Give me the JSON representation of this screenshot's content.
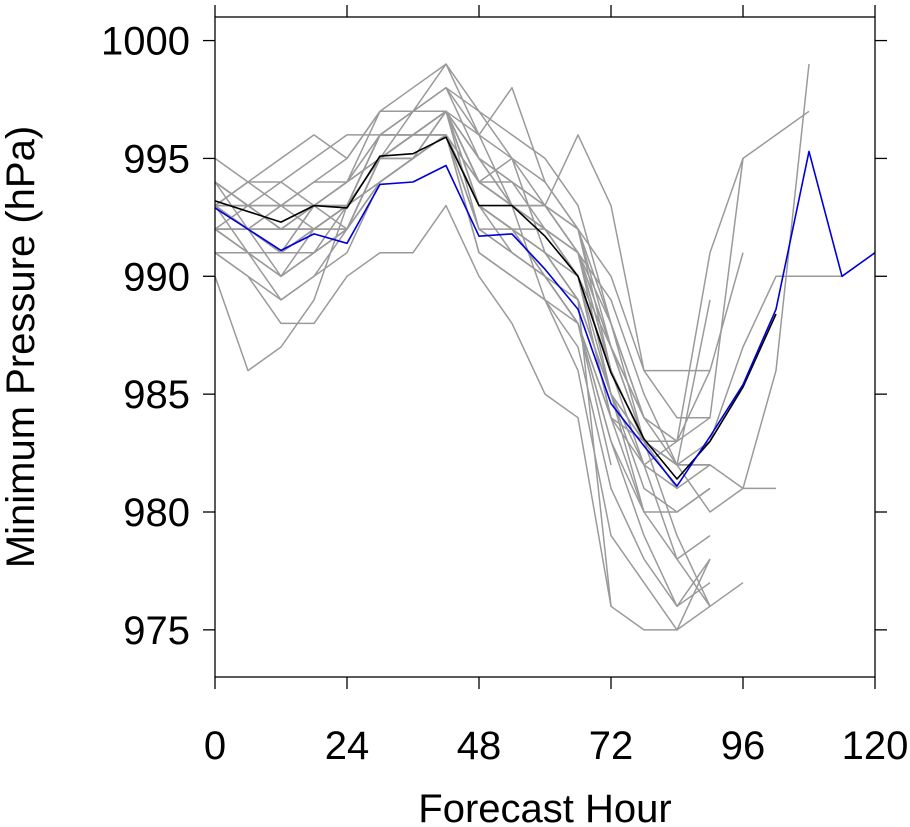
{
  "chart_data": {
    "type": "line",
    "xlabel": "Forecast Hour",
    "ylabel": "Minimum Pressure (hPa)",
    "xlim": [
      0,
      120
    ],
    "ylim": [
      973,
      1001
    ],
    "x_ticks": [
      0,
      24,
      48,
      72,
      96,
      120
    ],
    "x_tick_labels": [
      "0",
      "24",
      "48",
      "72",
      "96",
      "120"
    ],
    "y_ticks": [
      975,
      980,
      985,
      990,
      995,
      1000
    ],
    "y_tick_labels": [
      "975",
      "980",
      "985",
      "990",
      "995",
      "1000"
    ],
    "grid": false,
    "colors": {
      "ensemble": "#9a9a9a",
      "mean": "#000000",
      "highlight": "#0000dd",
      "frame": "#000000"
    },
    "series": [
      {
        "role": "ensemble",
        "x": [
          0,
          6,
          12,
          18,
          24,
          30,
          36,
          42,
          48,
          54,
          60,
          66,
          72,
          78,
          84,
          90
        ],
        "y": [
          990,
          986,
          987,
          989,
          993,
          996,
          997,
          999,
          996,
          993,
          989,
          986,
          979,
          977,
          975,
          978
        ]
      },
      {
        "role": "ensemble",
        "x": [
          0,
          6,
          12,
          18,
          24,
          30,
          36,
          42,
          48,
          54,
          60,
          66,
          72,
          78,
          84,
          90
        ],
        "y": [
          991,
          990,
          988,
          988,
          990,
          991,
          991,
          993,
          990,
          988,
          985,
          984,
          976,
          975,
          975,
          976
        ]
      },
      {
        "role": "ensemble",
        "x": [
          0,
          6,
          12,
          18,
          24,
          30,
          36,
          42,
          48,
          54,
          60,
          66,
          72,
          78,
          84,
          90
        ],
        "y": [
          992,
          991,
          989,
          990,
          992,
          995,
          995,
          997,
          993,
          992,
          990,
          988,
          983,
          979,
          976,
          977
        ]
      },
      {
        "role": "ensemble",
        "x": [
          0,
          6,
          12,
          18,
          24,
          30,
          36,
          42,
          48,
          54,
          60,
          66,
          72,
          78,
          84,
          90
        ],
        "y": [
          993,
          992,
          990,
          991,
          993,
          996,
          996,
          997,
          995,
          993,
          992,
          990,
          985,
          982,
          978,
          976
        ]
      },
      {
        "role": "ensemble",
        "x": [
          0,
          6,
          12,
          18,
          24,
          30,
          36,
          42,
          48,
          54,
          60,
          66,
          72,
          78,
          84,
          90,
          96
        ],
        "y": [
          994,
          993,
          992,
          993,
          994,
          997,
          997,
          998,
          995,
          994,
          992,
          991,
          986,
          983,
          979,
          976,
          977
        ]
      },
      {
        "role": "ensemble",
        "x": [
          0,
          6,
          12,
          18,
          24,
          30,
          36,
          42,
          48,
          54,
          60,
          66,
          72
        ],
        "y": [
          995,
          994,
          993,
          994,
          995,
          997,
          998,
          999,
          997,
          995,
          991,
          989,
          976
        ]
      },
      {
        "role": "ensemble",
        "x": [
          0,
          6,
          12,
          18,
          24,
          30,
          36,
          42,
          48,
          54,
          60,
          66,
          72,
          78,
          84,
          90
        ],
        "y": [
          993,
          994,
          995,
          996,
          995,
          997,
          997,
          998,
          996,
          998,
          994,
          992,
          987,
          983,
          982,
          982
        ]
      },
      {
        "role": "ensemble",
        "x": [
          0,
          6,
          12,
          18,
          24,
          30,
          36,
          42,
          48,
          54,
          60,
          66,
          72,
          78,
          84,
          90,
          96,
          102
        ],
        "y": [
          992,
          993,
          994,
          995,
          996,
          996,
          997,
          998,
          997,
          996,
          995,
          993,
          988,
          984,
          982,
          982,
          981,
          981
        ]
      },
      {
        "role": "ensemble",
        "x": [
          0,
          6,
          12,
          18,
          24,
          30,
          36,
          42,
          48,
          54,
          60,
          66,
          72,
          78,
          84,
          90
        ],
        "y": [
          994,
          992,
          991,
          993,
          994,
          995,
          996,
          996,
          994,
          993,
          993,
          996,
          993,
          986,
          984,
          984
        ]
      },
      {
        "role": "ensemble",
        "x": [
          0,
          6,
          12,
          18,
          24,
          30,
          36,
          42,
          48,
          54,
          60,
          66,
          72,
          78,
          84,
          90,
          96,
          102,
          108,
          114
        ],
        "y": [
          992,
          991,
          991,
          992,
          992,
          995,
          996,
          996,
          993,
          992,
          992,
          991,
          989,
          985,
          982,
          983,
          987,
          990,
          990,
          990
        ]
      },
      {
        "role": "ensemble",
        "x": [
          0,
          6,
          12,
          18,
          24,
          30,
          36,
          42,
          48,
          54,
          60,
          66,
          72,
          78,
          84,
          90,
          96
        ],
        "y": [
          993,
          993,
          992,
          992,
          993,
          995,
          995,
          997,
          994,
          993,
          993,
          992,
          988,
          984,
          983,
          991,
          995
        ]
      },
      {
        "role": "ensemble",
        "x": [
          0,
          6,
          12,
          18,
          24,
          30,
          36,
          42,
          48,
          54,
          60,
          66,
          72,
          78,
          84,
          90,
          96
        ],
        "y": [
          991,
          991,
          991,
          992,
          992,
          994,
          995,
          996,
          993,
          992,
          991,
          990,
          984,
          982,
          983,
          986,
          991
        ]
      },
      {
        "role": "ensemble",
        "x": [
          0,
          6,
          12,
          18,
          24,
          30,
          36,
          42,
          48,
          54,
          60,
          66,
          72,
          78,
          84,
          90
        ],
        "y": [
          993,
          992,
          993,
          994,
          994,
          996,
          996,
          997,
          996,
          995,
          994,
          992,
          990,
          986,
          986,
          986
        ]
      },
      {
        "role": "ensemble",
        "x": [
          0,
          6,
          12,
          18,
          24,
          30,
          36,
          42,
          48,
          54,
          60,
          66,
          72,
          78,
          84,
          90,
          96,
          102,
          108
        ],
        "y": [
          992,
          991,
          990,
          991,
          992,
          995,
          995,
          996,
          993,
          991,
          990,
          989,
          985,
          983,
          982,
          980,
          981,
          986,
          999
        ]
      },
      {
        "role": "ensemble",
        "x": [
          0,
          6,
          12,
          18,
          24,
          30,
          36,
          42,
          48,
          54,
          60,
          66,
          72,
          78,
          84,
          90,
          96,
          102,
          108
        ],
        "y": [
          994,
          993,
          992,
          993,
          993,
          995,
          996,
          997,
          994,
          993,
          992,
          991,
          987,
          984,
          983,
          984,
          995,
          996,
          997
        ]
      },
      {
        "role": "ensemble",
        "x": [
          0,
          6,
          12,
          18,
          24,
          30,
          36,
          42,
          48,
          54,
          60,
          66,
          72,
          78,
          84,
          90
        ],
        "y": [
          992,
          992,
          992,
          993,
          993,
          994,
          995,
          996,
          991,
          990,
          989,
          988,
          983,
          980,
          980,
          981
        ]
      },
      {
        "role": "ensemble",
        "x": [
          0,
          6,
          12,
          18,
          24,
          30,
          36,
          42,
          48,
          54,
          60,
          66,
          72,
          78,
          84,
          90
        ],
        "y": [
          993,
          992,
          993,
          992,
          993,
          996,
          996,
          997,
          994,
          993,
          992,
          990,
          986,
          983,
          982,
          989
        ]
      },
      {
        "role": "ensemble",
        "x": [
          0,
          6,
          12,
          18,
          24,
          30,
          36,
          42,
          48,
          54,
          60,
          66,
          72,
          78,
          84,
          90
        ],
        "y": [
          993,
          993,
          993,
          993,
          993,
          995,
          996,
          996,
          993,
          992,
          990,
          988,
          984,
          980,
          978,
          979
        ]
      },
      {
        "role": "ensemble",
        "x": [
          0,
          6,
          12,
          18,
          24,
          30,
          36,
          42,
          48,
          54,
          60,
          66,
          72,
          78,
          84
        ],
        "y": [
          994,
          993,
          993,
          993,
          994,
          995,
          997,
          997,
          994,
          994,
          993,
          991,
          986,
          982,
          981
        ]
      },
      {
        "role": "ensemble",
        "x": [
          0,
          6,
          12,
          18,
          24,
          30,
          36,
          42,
          48,
          54,
          60,
          66,
          72
        ],
        "y": [
          993,
          992,
          992,
          992,
          993,
          996,
          997,
          997,
          992,
          992,
          991,
          990,
          984
        ]
      },
      {
        "role": "ensemble",
        "x": [
          0,
          6,
          12,
          18,
          24,
          30,
          36,
          42,
          48,
          54,
          60,
          66,
          72
        ],
        "y": [
          992,
          992,
          991,
          991,
          992,
          995,
          995,
          996,
          992,
          991,
          990,
          988,
          982
        ]
      },
      {
        "role": "ensemble",
        "x": [
          0,
          6,
          12,
          18,
          24,
          30,
          36,
          42,
          48,
          54,
          60,
          66,
          72,
          78
        ],
        "y": [
          992,
          992,
          991,
          993,
          993,
          995,
          996,
          997,
          995,
          994,
          993,
          991,
          985,
          980
        ]
      },
      {
        "role": "ensemble",
        "x": [
          0,
          6,
          12,
          18,
          24,
          30,
          36,
          42,
          48,
          54,
          60,
          66,
          72,
          78,
          84,
          90
        ],
        "y": [
          991,
          991,
          990,
          992,
          993,
          994,
          995,
          996,
          992,
          991,
          990,
          988,
          984,
          983,
          981,
          982
        ]
      },
      {
        "role": "ensemble",
        "x": [
          0,
          6,
          12,
          18,
          24,
          30,
          36,
          42,
          48,
          54,
          60,
          66,
          72,
          78,
          84
        ],
        "y": [
          993,
          991,
          991,
          991,
          992,
          994,
          995,
          997,
          995,
          993,
          992,
          991,
          988,
          983,
          983
        ]
      },
      {
        "role": "ensemble",
        "x": [
          0,
          6,
          12,
          18,
          24,
          30,
          36,
          42,
          48,
          54,
          60,
          66,
          72,
          78,
          84
        ],
        "y": [
          994,
          993,
          993,
          993,
          994,
          996,
          996,
          997,
          993,
          992,
          991,
          989,
          985,
          983,
          982
        ]
      },
      {
        "role": "ensemble",
        "x": [
          0,
          6,
          12,
          18,
          24,
          30,
          36,
          42,
          48,
          54,
          60,
          66,
          72,
          78
        ],
        "y": [
          993,
          994,
          994,
          993,
          992,
          995,
          996,
          996,
          994,
          995,
          993,
          991,
          987,
          984
        ]
      },
      {
        "role": "ensemble",
        "x": [
          0,
          6,
          12,
          18,
          24,
          30,
          36,
          42,
          48,
          54,
          60,
          66,
          72,
          78,
          84,
          90
        ],
        "y": [
          991,
          990,
          989,
          990,
          991,
          994,
          995,
          996,
          994,
          993,
          992,
          990,
          987,
          983,
          982,
          982
        ]
      },
      {
        "role": "ensemble",
        "x": [
          0,
          6,
          12,
          18,
          24,
          30,
          36,
          42,
          48,
          54,
          60,
          66,
          72,
          78,
          84
        ],
        "y": [
          993,
          993,
          992,
          992,
          993,
          996,
          996,
          997,
          994,
          993,
          993,
          992,
          986,
          983,
          981
        ]
      },
      {
        "role": "ensemble",
        "x": [
          0,
          6,
          12,
          18,
          24,
          30,
          36,
          42,
          48,
          54,
          60,
          66,
          72,
          78,
          84,
          90
        ],
        "y": [
          992,
          991,
          990,
          991,
          992,
          994,
          995,
          996,
          991,
          990,
          989,
          987,
          981,
          978,
          976,
          978
        ]
      },
      {
        "role": "ensemble",
        "x": [
          0,
          6,
          12,
          18,
          24,
          30,
          36,
          42,
          48,
          54,
          60,
          66,
          72,
          78,
          84,
          90
        ],
        "y": [
          993,
          992,
          991,
          992,
          993,
          995,
          996,
          997,
          993,
          992,
          991,
          989,
          985,
          981,
          980,
          981
        ]
      },
      {
        "role": "mean",
        "x": [
          0,
          12,
          18,
          24,
          30,
          36,
          42,
          48,
          54,
          60,
          66,
          72,
          78,
          84,
          90,
          96,
          102
        ],
        "y": [
          993.2,
          992.3,
          993.0,
          992.9,
          995.1,
          995.2,
          995.9,
          993.0,
          993.0,
          991.7,
          990.0,
          985.9,
          983.1,
          981.4,
          983.0,
          985.3,
          988.4
        ]
      },
      {
        "role": "highlight",
        "x": [
          0,
          12,
          18,
          24,
          30,
          36,
          42,
          48,
          54,
          60,
          66,
          72,
          78,
          84,
          90,
          96,
          102,
          108,
          114,
          120
        ],
        "y": [
          992.9,
          991.1,
          991.8,
          991.4,
          993.9,
          994.0,
          994.7,
          991.7,
          991.8,
          990.3,
          988.6,
          984.6,
          982.8,
          981.1,
          983.2,
          985.4,
          988.6,
          995.3,
          990.0,
          991.0
        ]
      }
    ]
  }
}
